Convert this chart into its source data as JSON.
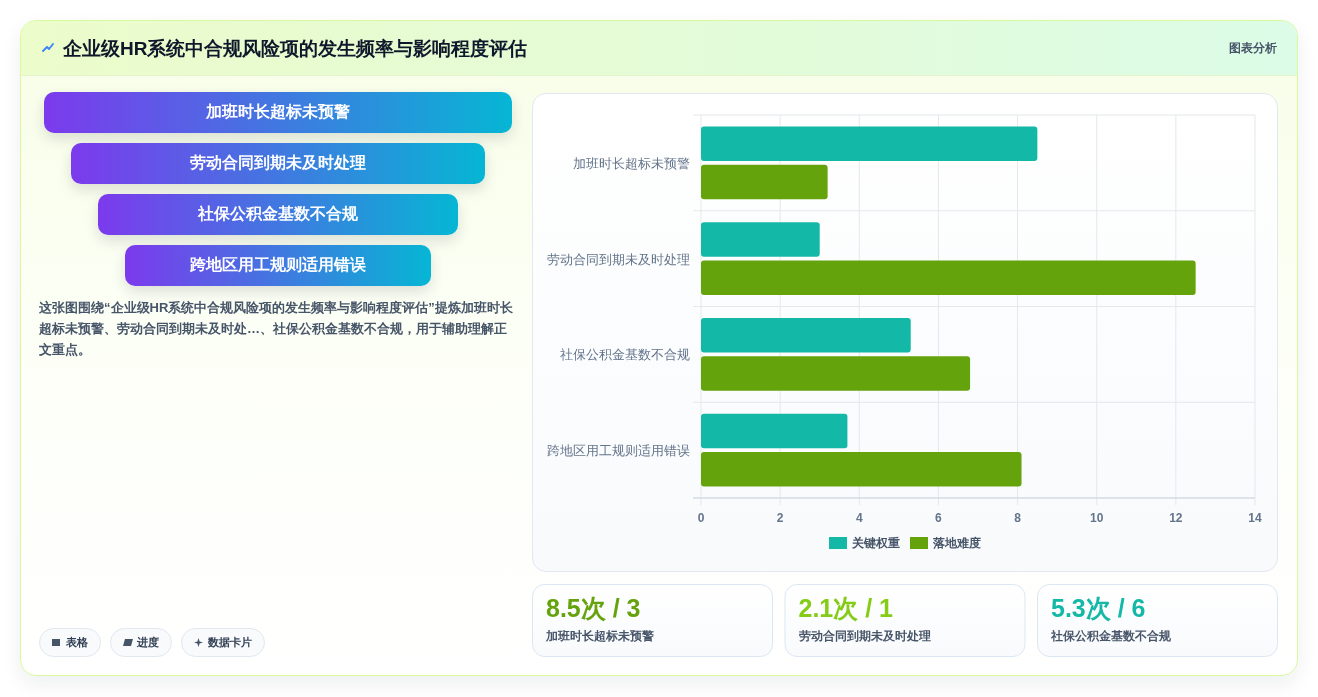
{
  "chart_data": [
    {
      "type": "other",
      "title": "企业级HR系统中合规风险项的发生频率与影响程度评估",
      "categories": [
        "加班时长超标未预警",
        "劳动合同到期未及时处理",
        "社保公积金基数不合规",
        "跨地区用工规则适用错误"
      ],
      "annotations": [
        "图表分析",
        "这张图围绕“企业级HR系统中合规风险项的发生频率与影响程度评估”提炼加班时长超标未预警、劳动合同到期未及时处…、社保公积金基数不合规，用于辅助理解正文重点。",
        "表格",
        "进度",
        "数据卡片"
      ]
    },
    {
      "type": "bar",
      "orientation": "horizontal",
      "categories": [
        "加班时长超标未预警",
        "劳动合同到期未及时处理",
        "社保公积金基数不合规",
        "跨地区用工规则适用错误"
      ],
      "series": [
        {
          "name": "关键权重",
          "color": "#14b8a6",
          "values": [
            8.5,
            3.0,
            5.3,
            3.7
          ]
        },
        {
          "name": "落地难度",
          "color": "#65a30d",
          "values": [
            3.2,
            12.5,
            6.8,
            8.1
          ]
        }
      ],
      "xlim": [
        0,
        14
      ],
      "xticks": [
        0,
        2,
        4,
        6,
        8,
        10,
        12,
        14
      ],
      "grid": true,
      "legend": "bottom"
    },
    {
      "type": "other",
      "categories": [
        "加班时长超标未预警",
        "劳动合同到期未及时处理",
        "社保公积金基数不合规"
      ],
      "annotations": [
        "8.5次 / 3",
        "2.1次 / 1",
        "5.3次 / 6"
      ],
      "colors": [
        "#65a30d",
        "#84cc16",
        "#14b8a6"
      ]
    }
  ]
}
